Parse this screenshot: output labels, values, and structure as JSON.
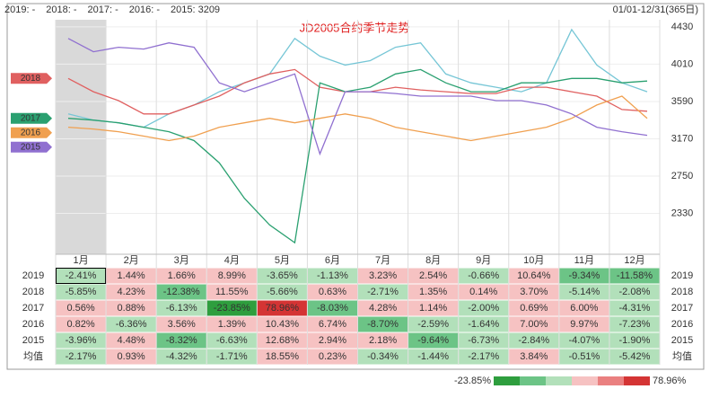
{
  "chart_data": [
    {
      "type": "line",
      "title": "JD2005合约季节走势",
      "date_range": "01/01-12/31(365日)",
      "ylim": [
        1870,
        4510
      ],
      "yticks": [
        2330,
        2750,
        3170,
        3590,
        4010,
        4430
      ],
      "grid": true,
      "series": [
        {
          "name": "2019",
          "legend": "2019: -",
          "color": "#76c6d6",
          "start_tag": false,
          "values": [
            3450,
            3380,
            3350,
            3300,
            3450,
            3550,
            3700,
            3800,
            3900,
            4300,
            4100,
            4000,
            4050,
            4200,
            4250,
            3900,
            3800,
            3750,
            3700,
            3800,
            4400,
            4000,
            3800,
            3700
          ]
        },
        {
          "name": "2018",
          "legend": "2018: -",
          "color": "#e06060",
          "start_tag": true,
          "values": [
            3850,
            3700,
            3600,
            3450,
            3450,
            3550,
            3650,
            3800,
            3900,
            3950,
            3750,
            3700,
            3700,
            3750,
            3720,
            3700,
            3680,
            3680,
            3750,
            3750,
            3700,
            3650,
            3500,
            3480
          ]
        },
        {
          "name": "2017",
          "legend": "2017: -",
          "color": "#2aa070",
          "start_tag": true,
          "values": [
            3400,
            3380,
            3350,
            3300,
            3250,
            3150,
            2900,
            2500,
            2200,
            2000,
            3800,
            3700,
            3750,
            3900,
            3950,
            3800,
            3700,
            3700,
            3800,
            3800,
            3850,
            3850,
            3800,
            3820
          ]
        },
        {
          "name": "2016",
          "legend": "2016: -",
          "color": "#f0a050",
          "start_tag": true,
          "values": [
            3300,
            3280,
            3250,
            3200,
            3150,
            3200,
            3300,
            3350,
            3400,
            3350,
            3400,
            3450,
            3400,
            3300,
            3250,
            3200,
            3150,
            3200,
            3250,
            3300,
            3400,
            3550,
            3650,
            3400
          ]
        },
        {
          "name": "2015",
          "legend": "2015: 3209",
          "color": "#9070d0",
          "start_tag": true,
          "values": [
            4300,
            4150,
            4200,
            4180,
            4250,
            4200,
            3800,
            3700,
            3800,
            3900,
            3000,
            3700,
            3700,
            3680,
            3650,
            3650,
            3650,
            3600,
            3600,
            3550,
            3450,
            3300,
            3250,
            3209
          ]
        }
      ]
    },
    {
      "type": "heatmap",
      "categories": [
        "1月",
        "2月",
        "3月",
        "4月",
        "5月",
        "6月",
        "7月",
        "8月",
        "9月",
        "10月",
        "11月",
        "12月"
      ],
      "rows": [
        {
          "name": "2019",
          "values": [
            -2.41,
            1.44,
            1.66,
            8.99,
            -3.65,
            -1.13,
            3.23,
            2.54,
            -0.66,
            10.64,
            -9.34,
            -11.58
          ],
          "value_labels": [
            "-2.41%",
            "1.44%",
            "1.66%",
            "8.99%",
            "-3.65%",
            "-1.13%",
            "3.23%",
            "2.54%",
            "-0.66%",
            "10.64%",
            "-9.34%",
            "-11.58%"
          ]
        },
        {
          "name": "2018",
          "values": [
            -5.85,
            4.23,
            -12.38,
            11.55,
            -5.66,
            0.63,
            -2.71,
            1.35,
            0.14,
            3.7,
            -5.14,
            -2.08
          ],
          "value_labels": [
            "-5.85%",
            "4.23%",
            "-12.38%",
            "11.55%",
            "-5.66%",
            "0.63%",
            "-2.71%",
            "1.35%",
            "0.14%",
            "3.70%",
            "-5.14%",
            "-2.08%"
          ]
        },
        {
          "name": "2017",
          "values": [
            0.56,
            0.88,
            -6.13,
            -23.85,
            78.96,
            -8.03,
            4.28,
            1.14,
            -2.0,
            0.69,
            6.0,
            -4.31
          ],
          "value_labels": [
            "0.56%",
            "0.88%",
            "-6.13%",
            "-23.85%",
            "78.96%",
            "-8.03%",
            "4.28%",
            "1.14%",
            "-2.00%",
            "0.69%",
            "6.00%",
            "-4.31%"
          ]
        },
        {
          "name": "2016",
          "values": [
            0.82,
            -6.36,
            3.56,
            1.39,
            10.43,
            6.74,
            -8.7,
            -2.59,
            -1.64,
            7.0,
            9.97,
            -7.23
          ],
          "value_labels": [
            "0.82%",
            "-6.36%",
            "3.56%",
            "1.39%",
            "10.43%",
            "6.74%",
            "-8.70%",
            "-2.59%",
            "-1.64%",
            "7.00%",
            "9.97%",
            "-7.23%"
          ]
        },
        {
          "name": "2015",
          "values": [
            -3.96,
            4.48,
            -8.32,
            -6.63,
            12.68,
            2.94,
            2.18,
            -9.64,
            -6.73,
            -2.84,
            -4.07,
            -1.9
          ],
          "value_labels": [
            "-3.96%",
            "4.48%",
            "-8.32%",
            "-6.63%",
            "12.68%",
            "2.94%",
            "2.18%",
            "-9.64%",
            "-6.73%",
            "-2.84%",
            "-4.07%",
            "-1.90%"
          ]
        },
        {
          "name": "均值",
          "values": [
            -2.17,
            0.93,
            -4.32,
            -1.71,
            18.55,
            0.23,
            -0.34,
            -1.44,
            -2.17,
            3.84,
            -0.51,
            -5.42
          ],
          "value_labels": [
            "-2.17%",
            "0.93%",
            "-4.32%",
            "-1.71%",
            "18.55%",
            "0.23%",
            "-0.34%",
            "-1.44%",
            "-2.17%",
            "3.84%",
            "-0.51%",
            "-5.42%"
          ]
        }
      ],
      "scale": {
        "min": -23.85,
        "max": 78.96,
        "min_label": "-23.85%",
        "max_label": "78.96%",
        "colors": [
          "#2e9e3e",
          "#6cc486",
          "#b2e0ba",
          "#f6c2c2",
          "#ea8080",
          "#d43434"
        ]
      }
    }
  ]
}
